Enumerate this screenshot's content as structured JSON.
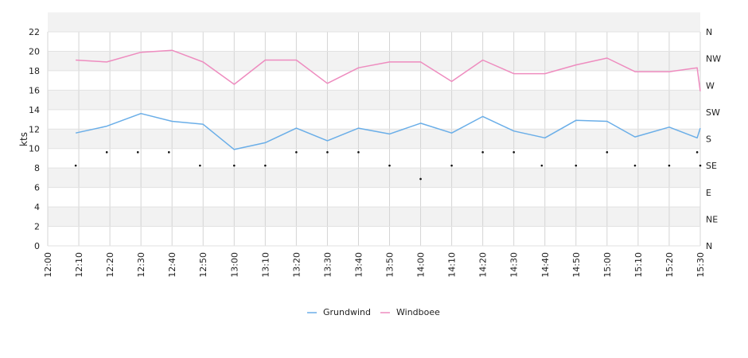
{
  "chart_data": {
    "type": "line",
    "ylabel": "kts",
    "ylim": [
      0,
      22
    ],
    "yticks": [
      0,
      2,
      4,
      6,
      8,
      10,
      12,
      14,
      16,
      18,
      20,
      22
    ],
    "y2ticks": [
      "N",
      "NE",
      "E",
      "SE",
      "S",
      "SW",
      "W",
      "NW",
      "N"
    ],
    "xticks": [
      "12:00",
      "12:10",
      "12:20",
      "12:30",
      "12:40",
      "12:50",
      "13:00",
      "13:10",
      "13:20",
      "13:30",
      "13:40",
      "13:50",
      "14:00",
      "14:10",
      "14:20",
      "14:30",
      "14:40",
      "14:50",
      "15:00",
      "15:10",
      "15:20",
      "15:30"
    ],
    "grid": true,
    "legend_position": "bottom",
    "series": [
      {
        "name": "Grundwind",
        "color": "#6aaee8",
        "points": [
          [
            "12:09",
            11.6
          ],
          [
            "12:19",
            12.3
          ],
          [
            "12:30",
            13.6
          ],
          [
            "12:40",
            12.8
          ],
          [
            "12:50",
            12.5
          ],
          [
            "13:00",
            9.9
          ],
          [
            "13:10",
            10.6
          ],
          [
            "13:20",
            12.1
          ],
          [
            "13:30",
            10.8
          ],
          [
            "13:40",
            12.1
          ],
          [
            "13:50",
            11.5
          ],
          [
            "14:00",
            12.6
          ],
          [
            "14:10",
            11.6
          ],
          [
            "14:20",
            13.3
          ],
          [
            "14:30",
            11.8
          ],
          [
            "14:40",
            11.1
          ],
          [
            "14:50",
            12.9
          ],
          [
            "15:00",
            12.8
          ],
          [
            "15:09",
            11.2
          ],
          [
            "15:20",
            12.2
          ],
          [
            "15:29",
            11.1
          ],
          [
            "15:30",
            12.1
          ]
        ]
      },
      {
        "name": "Windboee",
        "color": "#ee8cbf",
        "points": [
          [
            "12:09",
            19.1
          ],
          [
            "12:19",
            18.9
          ],
          [
            "12:30",
            19.9
          ],
          [
            "12:40",
            20.1
          ],
          [
            "12:50",
            18.9
          ],
          [
            "13:00",
            16.6
          ],
          [
            "13:10",
            19.1
          ],
          [
            "13:20",
            19.1
          ],
          [
            "13:30",
            16.7
          ],
          [
            "13:40",
            18.3
          ],
          [
            "13:50",
            18.9
          ],
          [
            "14:00",
            18.9
          ],
          [
            "14:10",
            16.9
          ],
          [
            "14:20",
            19.1
          ],
          [
            "14:30",
            17.7
          ],
          [
            "14:40",
            17.7
          ],
          [
            "14:50",
            18.6
          ],
          [
            "15:00",
            19.3
          ],
          [
            "15:09",
            17.9
          ],
          [
            "15:20",
            17.9
          ],
          [
            "15:29",
            18.3
          ],
          [
            "15:30",
            15.9
          ]
        ]
      }
    ],
    "direction_markers": [
      [
        "12:09",
        "SE"
      ],
      [
        "12:19",
        "SSE"
      ],
      [
        "12:29",
        "SSE"
      ],
      [
        "12:39",
        "SSE"
      ],
      [
        "12:49",
        "SE"
      ],
      [
        "13:00",
        "SE"
      ],
      [
        "13:10",
        "SE"
      ],
      [
        "13:20",
        "SSE"
      ],
      [
        "13:30",
        "SSE"
      ],
      [
        "13:40",
        "SSE"
      ],
      [
        "13:50",
        "SE"
      ],
      [
        "14:00",
        "ESE"
      ],
      [
        "14:10",
        "SE"
      ],
      [
        "14:20",
        "SSE"
      ],
      [
        "14:30",
        "SSE"
      ],
      [
        "14:39",
        "SE"
      ],
      [
        "14:50",
        "SE"
      ],
      [
        "15:00",
        "SSE"
      ],
      [
        "15:09",
        "SE"
      ],
      [
        "15:20",
        "SE"
      ],
      [
        "15:29",
        "SSE"
      ],
      [
        "15:30",
        "SE"
      ]
    ]
  }
}
